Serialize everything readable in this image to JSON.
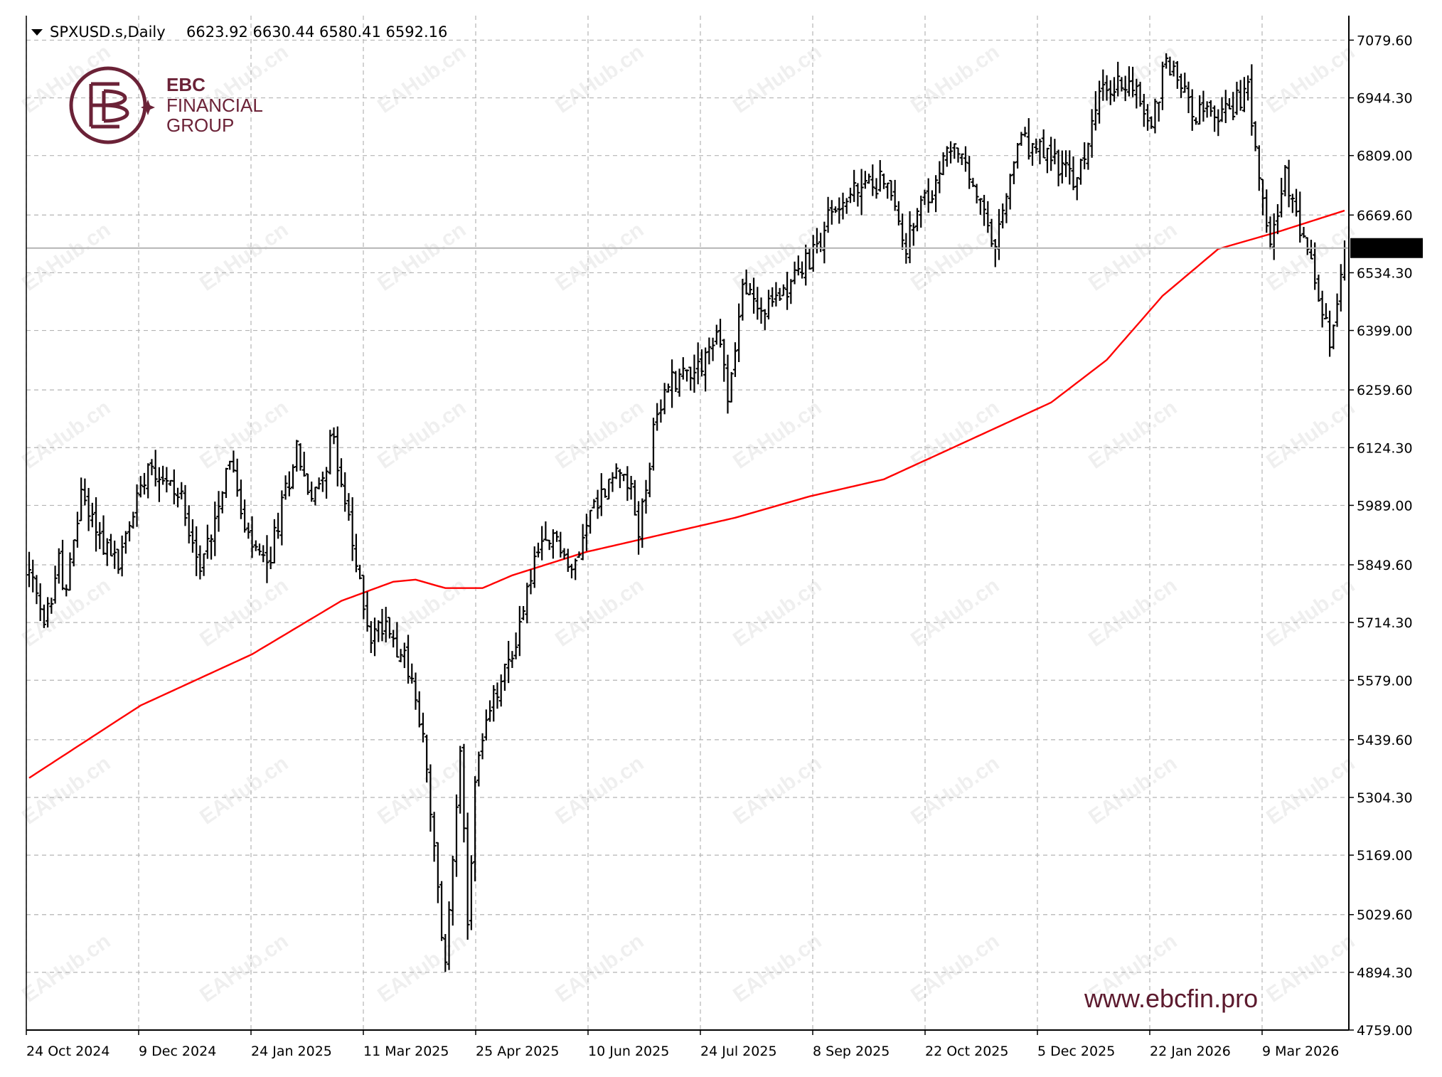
{
  "header": {
    "symbol": "SPXUSD.s,Daily",
    "ohlc": "6623.92 6630.44 6580.41 6592.16"
  },
  "brand": {
    "line1": "EBC",
    "line2": "FINANCIAL",
    "line3": "GROUP",
    "color": "#6b2237"
  },
  "watermark": {
    "text": "EAHub.cn"
  },
  "website": "www.ebcfin.pro",
  "chart_data": {
    "type": "ohlc",
    "symbol": "SPXUSD.s",
    "timeframe": "Daily",
    "ylim": [
      4759.0,
      7137.0
    ],
    "price_ticks": [
      "7079.60",
      "6944.30",
      "6809.00",
      "6669.60",
      "6534.30",
      "6399.00",
      "6259.60",
      "6124.30",
      "5989.00",
      "5849.60",
      "5714.30",
      "5579.00",
      "5439.60",
      "5304.30",
      "5169.00",
      "5029.60",
      "4894.30",
      "4759.00"
    ],
    "date_ticks": [
      "24 Oct 2024",
      "9 Dec 2024",
      "24 Jan 2025",
      "11 Mar 2025",
      "25 Apr 2025",
      "10 Jun 2025",
      "24 Jul 2025",
      "8 Sep 2025",
      "22 Oct 2025",
      "5 Dec 2025",
      "22 Jan 2026",
      "9 Mar 2026"
    ],
    "current_price": "6592.16",
    "bar_color": "#000000",
    "ma_color": "#ff0000",
    "grid": true,
    "price_path": [
      [
        0,
        5830
      ],
      [
        4,
        5700
      ],
      [
        8,
        5860
      ],
      [
        10,
        5780
      ],
      [
        14,
        6020
      ],
      [
        20,
        5900
      ],
      [
        24,
        5850
      ],
      [
        32,
        6100
      ],
      [
        42,
        5990
      ],
      [
        46,
        5830
      ],
      [
        54,
        6110
      ],
      [
        58,
        5920
      ],
      [
        64,
        5840
      ],
      [
        72,
        6130
      ],
      [
        76,
        5990
      ],
      [
        82,
        6150
      ],
      [
        88,
        5840
      ],
      [
        92,
        5680
      ],
      [
        96,
        5720
      ],
      [
        102,
        5610
      ],
      [
        106,
        5440
      ],
      [
        112,
        4900
      ],
      [
        116,
        5440
      ],
      [
        118,
        4980
      ],
      [
        120,
        5350
      ],
      [
        124,
        5510
      ],
      [
        130,
        5640
      ],
      [
        136,
        5860
      ],
      [
        142,
        5920
      ],
      [
        146,
        5820
      ],
      [
        150,
        5960
      ],
      [
        160,
        6090
      ],
      [
        164,
        5930
      ],
      [
        168,
        6150
      ],
      [
        172,
        6280
      ],
      [
        180,
        6320
      ],
      [
        186,
        6390
      ],
      [
        188,
        6230
      ],
      [
        192,
        6500
      ],
      [
        198,
        6440
      ],
      [
        204,
        6510
      ],
      [
        210,
        6560
      ],
      [
        216,
        6680
      ],
      [
        222,
        6720
      ],
      [
        230,
        6760
      ],
      [
        236,
        6600
      ],
      [
        240,
        6680
      ],
      [
        244,
        6740
      ],
      [
        248,
        6840
      ],
      [
        254,
        6740
      ],
      [
        260,
        6580
      ],
      [
        266,
        6840
      ],
      [
        276,
        6800
      ],
      [
        282,
        6740
      ],
      [
        288,
        6950
      ],
      [
        296,
        6990
      ],
      [
        302,
        6880
      ],
      [
        306,
        7040
      ],
      [
        314,
        6910
      ],
      [
        320,
        6900
      ],
      [
        328,
        6960
      ],
      [
        334,
        6620
      ],
      [
        338,
        6750
      ],
      [
        344,
        6580
      ],
      [
        350,
        6360
      ],
      [
        354,
        6590
      ]
    ],
    "ma_path": [
      [
        0,
        5350
      ],
      [
        30,
        5520
      ],
      [
        60,
        5640
      ],
      [
        84,
        5765
      ],
      [
        98,
        5810
      ],
      [
        104,
        5815
      ],
      [
        112,
        5795
      ],
      [
        122,
        5795
      ],
      [
        130,
        5825
      ],
      [
        150,
        5880
      ],
      [
        170,
        5920
      ],
      [
        190,
        5960
      ],
      [
        210,
        6010
      ],
      [
        230,
        6050
      ],
      [
        245,
        6110
      ],
      [
        260,
        6170
      ],
      [
        275,
        6230
      ],
      [
        290,
        6330
      ],
      [
        305,
        6480
      ],
      [
        320,
        6590
      ],
      [
        336,
        6630
      ],
      [
        354,
        6680
      ]
    ]
  }
}
